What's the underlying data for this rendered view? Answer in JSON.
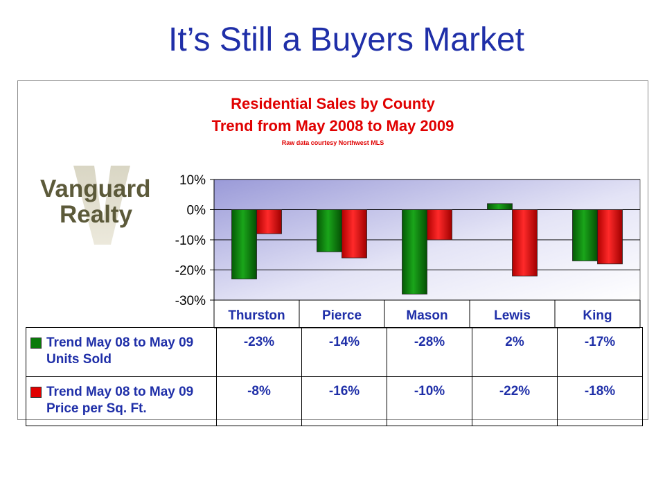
{
  "slide": {
    "title": "It’s Still a Buyers Market"
  },
  "logo": {
    "line1": "Vanguard",
    "line2": "Realty",
    "mark": "V"
  },
  "chart_data": {
    "type": "bar",
    "title": "Residential Sales by County",
    "subtitle": "Trend from May 2008 to May 2009",
    "source": "Raw data courtesy Northwest MLS",
    "categories": [
      "Thurston",
      "Pierce",
      "Mason",
      "Lewis",
      "King"
    ],
    "series": [
      {
        "name": "Trend May 08 to May 09 Units Sold",
        "values": [
          -23,
          -14,
          -28,
          2,
          -17
        ],
        "color": "#0a7a0a"
      },
      {
        "name": "Trend May 08 to May 09 Price per Sq. Ft.",
        "values": [
          -8,
          -16,
          -10,
          -22,
          -18
        ],
        "color": "#e00000"
      }
    ],
    "ylim": [
      -30,
      10
    ],
    "yticks": [
      "10%",
      "0%",
      "-10%",
      "-20%",
      "-30%"
    ],
    "grid": true,
    "legend": "data-table",
    "table": {
      "rows": [
        {
          "label": "Trend May 08 to May 09 Units Sold",
          "values": [
            "-23%",
            "-14%",
            "-28%",
            "2%",
            "-17%"
          ]
        },
        {
          "label": "Trend May 08 to May 09 Price per Sq. Ft.",
          "values": [
            "-8%",
            "-16%",
            "-10%",
            "-22%",
            "-18%"
          ]
        }
      ]
    }
  }
}
